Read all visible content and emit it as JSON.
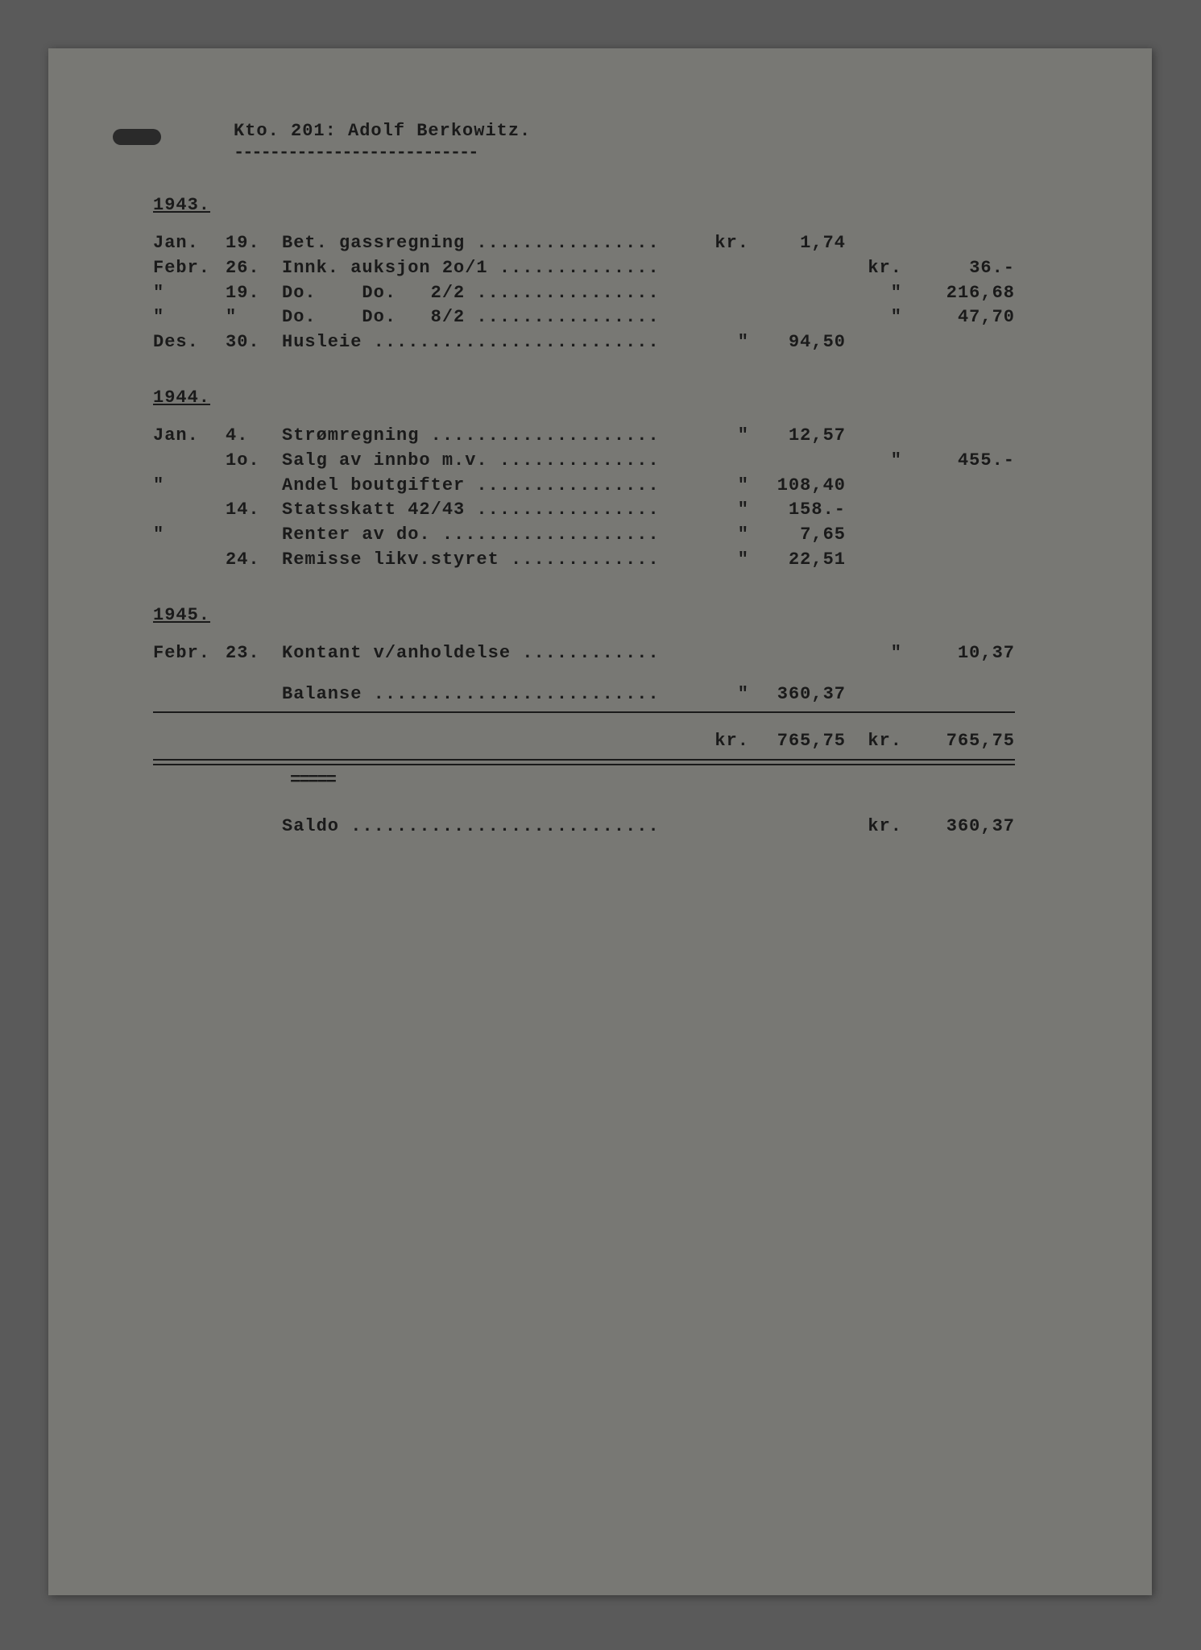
{
  "background_color": "#5a5a5a",
  "paper_color": "#787874",
  "text_color": "#1a1a1a",
  "font_family": "Courier New",
  "font_size_pt": 22,
  "header": {
    "title": "Kto. 201: Adolf Berkowitz.",
    "underline": "---------------------------"
  },
  "sections": [
    {
      "year": "1943.",
      "rows": [
        {
          "month": "Jan.",
          "day": "19.",
          "desc": "Bet. gassregning ................",
          "cur1": "kr.",
          "amt1": "1,74",
          "cur2": "",
          "amt2": ""
        },
        {
          "month": "Febr.",
          "day": "26.",
          "desc": "Innk. auksjon 2o/1 ..............",
          "cur1": "",
          "amt1": "",
          "cur2": "kr.",
          "amt2": "36.-"
        },
        {
          "month": "\"",
          "day": "19.",
          "desc": "Do.    Do.   2/2 ................",
          "cur1": "",
          "amt1": "",
          "cur2": "\"",
          "amt2": "216,68"
        },
        {
          "month": "\"",
          "day": "\"",
          "desc": "Do.    Do.   8/2 ................",
          "cur1": "",
          "amt1": "",
          "cur2": "\"",
          "amt2": "47,70"
        },
        {
          "month": "Des.",
          "day": "30.",
          "desc": "Husleie .........................",
          "cur1": "\"",
          "amt1": "94,50",
          "cur2": "",
          "amt2": ""
        }
      ]
    },
    {
      "year": "1944.",
      "rows": [
        {
          "month": "Jan.",
          "day": "4.",
          "desc": "Strømregning ....................",
          "cur1": "\"",
          "amt1": "12,57",
          "cur2": "",
          "amt2": ""
        },
        {
          "month": "",
          "day": "1o.",
          "desc": "Salg av innbo m.v. ..............",
          "cur1": "",
          "amt1": "",
          "cur2": "\"",
          "amt2": "455.-"
        },
        {
          "month": "\"",
          "day": "",
          "desc": "Andel boutgifter ................",
          "cur1": "\"",
          "amt1": "108,40",
          "cur2": "",
          "amt2": ""
        },
        {
          "month": "",
          "day": "14.",
          "desc": "Statsskatt 42/43 ................",
          "cur1": "\"",
          "amt1": "158.-",
          "cur2": "",
          "amt2": ""
        },
        {
          "month": "\"",
          "day": "",
          "desc": "Renter av do. ...................",
          "cur1": "\"",
          "amt1": "7,65",
          "cur2": "",
          "amt2": ""
        },
        {
          "month": "",
          "day": "24.",
          "desc": "Remisse likv.styret .............",
          "cur1": "\"",
          "amt1": "22,51",
          "cur2": "",
          "amt2": ""
        }
      ]
    },
    {
      "year": "1945.",
      "rows": [
        {
          "month": "Febr.",
          "day": "23.",
          "desc": "Kontant v/anholdelse ............",
          "cur1": "",
          "amt1": "",
          "cur2": "\"",
          "amt2": "10,37"
        }
      ]
    }
  ],
  "balance": {
    "month": "",
    "day": "",
    "desc": "Balanse .........................",
    "cur1": "\"",
    "amt1": "360,37",
    "cur2": "",
    "amt2": ""
  },
  "totals": {
    "month": "",
    "day": "",
    "desc": "",
    "cur1": "kr.",
    "amt1": "765,75",
    "cur2": "kr.",
    "amt2": "765,75"
  },
  "saldo": {
    "month": "",
    "day": "",
    "desc": "Saldo ...........................",
    "cur1": "",
    "amt1": "",
    "cur2": "kr.",
    "amt2": "360,37"
  },
  "equals_mark": "====="
}
